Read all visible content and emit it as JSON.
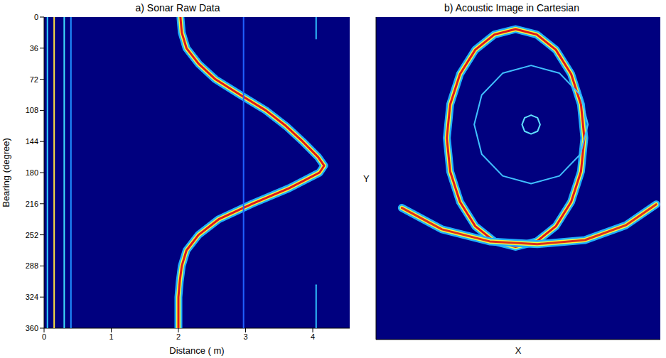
{
  "chart_data": [
    {
      "type": "line",
      "title": "a) Sonar Raw Data",
      "x_label": "Distance ( m)",
      "y_label": "Bearing (degree)",
      "xlim": [
        0,
        4.55
      ],
      "xticks": [
        0,
        1,
        2,
        3,
        4
      ],
      "ylim": [
        0,
        360
      ],
      "yticks": [
        0,
        36,
        72,
        108,
        144,
        180,
        216,
        252,
        288,
        324,
        360
      ],
      "grid": false,
      "series": [
        {
          "color": "#e01818",
          "line_style": "glow",
          "x": [
            2.03,
            2.05,
            2.12,
            2.3,
            2.55,
            2.92,
            3.3,
            3.6,
            3.85,
            4.08,
            4.17,
            4.1,
            3.65,
            3.1,
            2.6,
            2.3,
            2.12,
            2.05,
            2.02,
            2.0,
            2.0,
            2.0
          ],
          "values": [
            0,
            18,
            36,
            54,
            72,
            90,
            108,
            126,
            144,
            162,
            172,
            180,
            198,
            216,
            234,
            252,
            270,
            288,
            306,
            324,
            342,
            360
          ]
        },
        {
          "color": "#30d0ff",
          "line_style": "solid",
          "x": [
            0.05,
            0.05
          ],
          "values": [
            0,
            360
          ]
        },
        {
          "color": "#ffe040",
          "line_style": "solid",
          "x": [
            0.15,
            0.15
          ],
          "values": [
            0,
            360
          ]
        },
        {
          "color": "#40e0ff",
          "line_style": "solid",
          "x": [
            0.3,
            0.3
          ],
          "values": [
            0,
            360
          ]
        },
        {
          "color": "#2090ff",
          "line_style": "solid",
          "x": [
            0.4,
            0.4
          ],
          "values": [
            0,
            360
          ]
        },
        {
          "color": "#2060ff",
          "line_style": "solid",
          "x": [
            2.97,
            2.97
          ],
          "values": [
            0,
            360
          ]
        },
        {
          "color": "#30c0ff",
          "line_style": "solid",
          "x": [
            4.05,
            4.05
          ],
          "values": [
            0,
            25
          ]
        },
        {
          "color": "#30c0ff",
          "line_style": "solid",
          "x": [
            4.05,
            4.05
          ],
          "values": [
            310,
            360
          ]
        }
      ]
    },
    {
      "type": "line",
      "title": "b) Acoustic Image in Cartesian",
      "x_label": "X",
      "y_label": "Y",
      "xlim": [
        -6,
        5
      ],
      "ylim": [
        -8,
        4
      ],
      "tick_labels": false,
      "grid": false,
      "series": [
        {
          "color": "#e01818",
          "line_style": "glow",
          "x": [
            2.06,
            1.93,
            1.55,
            0.96,
            0.22,
            -0.6,
            -1.42,
            -2.16,
            -2.75,
            -3.13,
            -3.26,
            -3.13,
            -2.75,
            -2.16,
            -1.42,
            -0.6,
            0.22,
            0.96,
            1.55,
            1.93,
            2.06
          ],
          "values": [
            -0.5,
            0.75,
            1.88,
            2.78,
            3.35,
            3.55,
            3.35,
            2.78,
            1.88,
            0.75,
            -0.5,
            -1.75,
            -2.88,
            -3.78,
            -4.35,
            -4.55,
            -4.35,
            -3.78,
            -2.88,
            -1.75,
            -0.5
          ]
        },
        {
          "color": "#40c0ff",
          "line_style": "solid",
          "x": [
            2.2,
            1.91,
            1.1,
            0,
            -1.1,
            -1.91,
            -2.2,
            -1.91,
            -1.1,
            0,
            1.1,
            1.91,
            2.2
          ],
          "values": [
            0,
            1.1,
            1.91,
            2.2,
            1.91,
            1.1,
            0,
            -1.1,
            -1.91,
            -2.2,
            -1.91,
            -1.1,
            0
          ]
        },
        {
          "color": "#60e0ff",
          "line_style": "solid",
          "x": [
            0.35,
            0.25,
            0,
            -0.25,
            -0.35,
            -0.25,
            0,
            0.25,
            0.35
          ],
          "values": [
            0,
            0.25,
            0.35,
            0.25,
            0,
            -0.25,
            -0.35,
            -0.25,
            0
          ]
        },
        {
          "color": "#e03018",
          "line_style": "glow",
          "x": [
            -5.0,
            -3.45,
            -1.6,
            0.24,
            2.08,
            3.66,
            4.84
          ],
          "values": [
            -3.1,
            -3.9,
            -4.35,
            -4.45,
            -4.3,
            -3.75,
            -2.97
          ]
        }
      ]
    }
  ]
}
